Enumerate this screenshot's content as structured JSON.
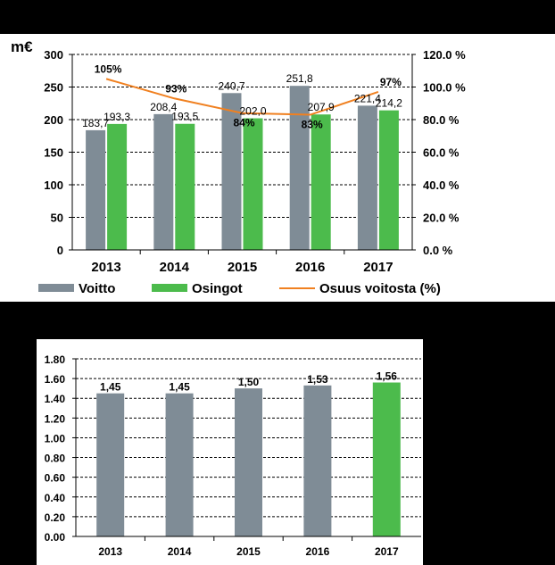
{
  "chart_data": [
    {
      "type": "bar",
      "categories": [
        "2013",
        "2014",
        "2015",
        "2016",
        "2017"
      ],
      "unit_label": "m€",
      "series": [
        {
          "name": "Voitto",
          "values": [
            183.7,
            208.4,
            240.7,
            251.8,
            221.4
          ],
          "labels": [
            "183,7",
            "208,4",
            "240,7",
            "251,8",
            "221,4"
          ],
          "color": "#7f8c96"
        },
        {
          "name": "Osingot",
          "values": [
            193.3,
            193.5,
            202.0,
            207.9,
            214.2
          ],
          "labels": [
            "193,3",
            "193,5",
            "202,0",
            "207,9",
            "214,2"
          ],
          "color": "#4cbb4c"
        }
      ],
      "line_series": {
        "type": "line",
        "name": "Osuus voitosta (%)",
        "values": [
          105,
          93,
          84,
          83,
          97
        ],
        "labels": [
          "105%",
          "93%",
          "84%",
          "83%",
          "97%"
        ],
        "color": "#f08020"
      },
      "ylim": [
        0,
        300
      ],
      "y_ticks": [
        "0",
        "50",
        "100",
        "150",
        "200",
        "250",
        "300"
      ],
      "y2lim": [
        0,
        120
      ],
      "y2_ticks": [
        "0.0 %",
        "20.0 %",
        "40.0 %",
        "60.0 %",
        "80.0 %",
        "100.0 %",
        "120.0 %"
      ],
      "grid": "dashed horizontal",
      "legend_position": "bottom"
    },
    {
      "type": "bar",
      "categories": [
        "2013",
        "2014",
        "2015",
        "2016",
        "2017"
      ],
      "values": [
        1.45,
        1.45,
        1.5,
        1.53,
        1.56
      ],
      "labels": [
        "1,45",
        "1,45",
        "1,50",
        "1,53",
        "1,56"
      ],
      "colors": [
        "#7f8c96",
        "#7f8c96",
        "#7f8c96",
        "#7f8c96",
        "#4cbb4c"
      ],
      "ylim": [
        0,
        1.8
      ],
      "y_ticks": [
        "0.00",
        "0.20",
        "0.40",
        "0.60",
        "0.80",
        "1.00",
        "1.20",
        "1.40",
        "1.60",
        "1.80"
      ],
      "grid": "dashed horizontal"
    }
  ]
}
